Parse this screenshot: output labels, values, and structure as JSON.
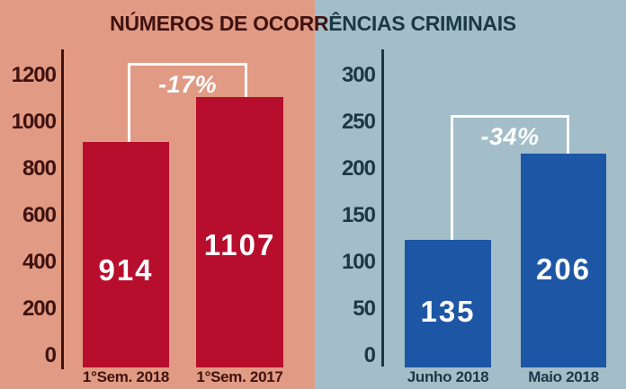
{
  "title": "NÚMEROS DE OCORRÊNCIAS CRIMINAIS",
  "title_split": {
    "left": "NÚMEROS DE OCORR",
    "right": "ÊNCIAS CRIMINAIS"
  },
  "colors": {
    "panel-left-bg": "#e19a83",
    "panel-right-bg": "#a3bdc9",
    "bar-left": "#b80e2d",
    "bar-right": "#1c56a4",
    "text-maroon": "#3f1210",
    "text-navy": "#1c3846",
    "bracket-white": "#ffffff"
  },
  "chart_data": [
    {
      "type": "bar",
      "panel": "left",
      "categories": [
        "1°Sem. 2018",
        "1°Sem. 2017"
      ],
      "values": [
        914,
        1107
      ],
      "annotation": "-17%",
      "ylim": [
        0,
        1200
      ],
      "yticks": [
        0,
        200,
        400,
        600,
        800,
        1000,
        1200
      ],
      "bar_color": "#b80e2d",
      "background": "#e19a83",
      "grid": false,
      "legend": false,
      "value_labels": "inside-white"
    },
    {
      "type": "bar",
      "panel": "right",
      "categories": [
        "Junho 2018",
        "Maio 2018"
      ],
      "values": [
        135,
        206
      ],
      "annotation": "-34%",
      "ylim": [
        0,
        300
      ],
      "yticks": [
        0,
        50,
        100,
        150,
        200,
        250,
        300
      ],
      "bar_color": "#1c56a4",
      "background": "#a3bdc9",
      "grid": false,
      "legend": false,
      "value_labels": "inside-white"
    }
  ]
}
